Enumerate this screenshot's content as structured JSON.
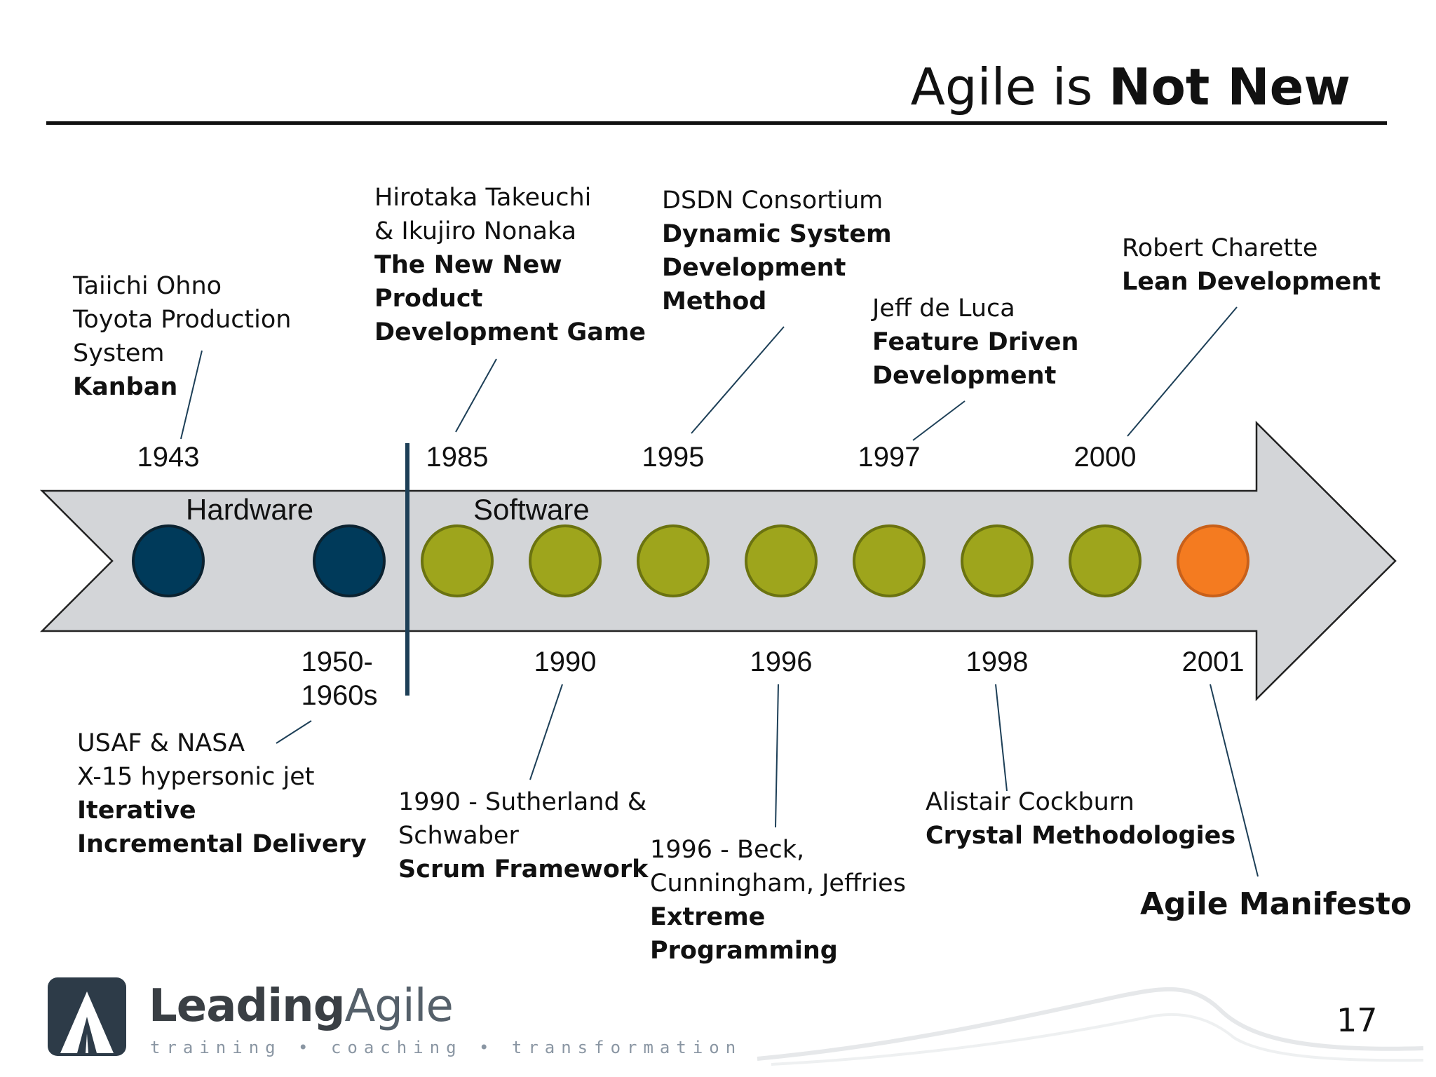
{
  "title": {
    "prefix": "Agile is ",
    "emphasis": "Not New"
  },
  "eras": {
    "hardware": "Hardware",
    "software": "Software"
  },
  "colors": {
    "hardware": "#003a5a",
    "software": "#9ea51c",
    "manifesto": "#f47b20",
    "arrow": "#d3d5d8"
  },
  "timeline": [
    {
      "year": "1943",
      "era": "hardware",
      "side": "top",
      "lines": [
        "Taiichi Ohno",
        "Toyota Production",
        "System"
      ],
      "bold": [
        "Kanban"
      ]
    },
    {
      "year": "1950-\n1960s",
      "era": "hardware",
      "side": "bottom",
      "lines": [
        "USAF & NASA",
        "X-15 hypersonic jet"
      ],
      "bold": [
        "Iterative",
        "Incremental Delivery"
      ]
    },
    {
      "year": "1985",
      "era": "software",
      "side": "top",
      "lines": [
        "Hirotaka Takeuchi",
        "&  Ikujiro Nonaka"
      ],
      "bold": [
        "The New New",
        "Product",
        "Development Game"
      ]
    },
    {
      "year": "1990",
      "era": "software",
      "side": "bottom",
      "lines": [
        "1990 - Sutherland &",
        "Schwaber"
      ],
      "bold": [
        "Scrum Framework"
      ]
    },
    {
      "year": "1995",
      "era": "software",
      "side": "top",
      "lines": [
        "DSDN Consortium"
      ],
      "bold": [
        "Dynamic System",
        "Development",
        "Method"
      ]
    },
    {
      "year": "1996",
      "era": "software",
      "side": "bottom",
      "lines": [
        "1996 - Beck,",
        "Cunningham, Jeffries"
      ],
      "bold": [
        "Extreme",
        "Programming"
      ]
    },
    {
      "year": "1997",
      "era": "software",
      "side": "top",
      "lines": [
        "Jeff de Luca"
      ],
      "bold": [
        "Feature Driven",
        "Development"
      ]
    },
    {
      "year": "1998",
      "era": "software",
      "side": "bottom",
      "lines": [
        "Alistair Cockburn"
      ],
      "bold": [
        "Crystal Methodologies"
      ]
    },
    {
      "year": "2000",
      "era": "software",
      "side": "top",
      "lines": [
        "Robert Charette"
      ],
      "bold": [
        "Lean Development"
      ]
    },
    {
      "year": "2001",
      "era": "manifesto",
      "side": "bottom",
      "lines": [],
      "bold": []
    }
  ],
  "manifesto_label": "Agile Manifesto",
  "page_number": "17",
  "logo": {
    "name_bold": "Leading",
    "name_light": "Agile",
    "tagline": "training • coaching • transformation"
  }
}
